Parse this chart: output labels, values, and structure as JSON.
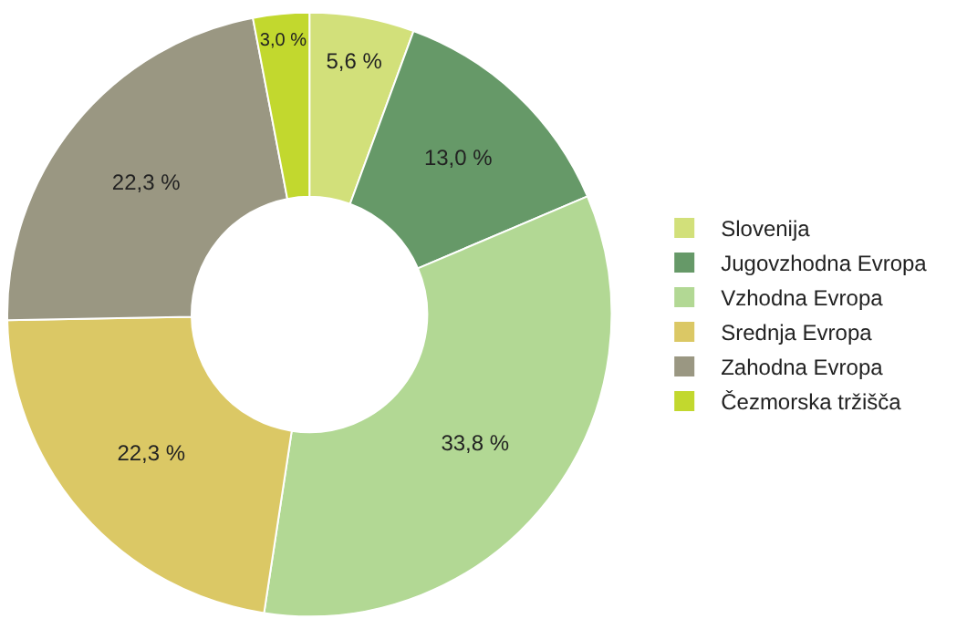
{
  "chart_data": {
    "type": "donut",
    "categories": [
      "Slovenija",
      "Jugovzhodna Evropa",
      "Vzhodna Evropa",
      "Srednja Evropa",
      "Zahodna Evropa",
      "Čezmorska tržišča"
    ],
    "values": [
      5.6,
      13.0,
      33.8,
      22.3,
      22.3,
      3.0
    ],
    "value_labels": [
      "5,6 %",
      "13,0 %",
      "33,8 %",
      "22,3 %",
      "22,3 %",
      "3,0 %"
    ],
    "colors": [
      "#d2e07a",
      "#669968",
      "#b2d894",
      "#dbc865",
      "#9a9782",
      "#c2d82e"
    ],
    "legend": "right"
  }
}
